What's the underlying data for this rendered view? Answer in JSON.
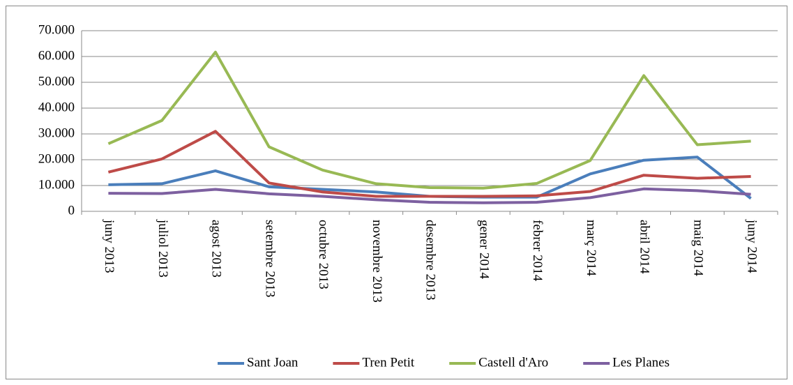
{
  "chart_data": {
    "type": "line",
    "categories": [
      "juny 2013",
      "juliol 2013",
      "agost 2013",
      "setembre 2013",
      "octubre 2013",
      "novembre 2013",
      "desembre 2013",
      "gener 2014",
      "febrer 2014",
      "març 2014",
      "abril 2014",
      "maig 2014",
      "juny 2014"
    ],
    "series": [
      {
        "name": "Sant Joan",
        "color": "#4a7ebb",
        "values": [
          10300,
          10700,
          15700,
          9500,
          8500,
          7500,
          5800,
          5500,
          5500,
          14500,
          19800,
          21000,
          5000
        ]
      },
      {
        "name": "Tren Petit",
        "color": "#be4b48",
        "values": [
          15200,
          20300,
          31000,
          11000,
          7500,
          5800,
          5800,
          5800,
          6000,
          7700,
          14000,
          12800,
          13500
        ]
      },
      {
        "name": "Castell d'Aro",
        "color": "#98b954",
        "values": [
          26200,
          35200,
          61700,
          25000,
          16000,
          10700,
          9200,
          9000,
          10800,
          19700,
          52600,
          25800,
          27200
        ]
      },
      {
        "name": "Les Planes",
        "color": "#7d60a0",
        "values": [
          7000,
          6900,
          8500,
          6800,
          5800,
          4500,
          3500,
          3300,
          3500,
          5300,
          8700,
          8000,
          6600
        ]
      }
    ],
    "ylim": [
      0,
      70000
    ],
    "yticks": [
      0,
      {
        "value": 10000,
        "label": "10.000"
      },
      {
        "value": 20000,
        "label": "20.000"
      },
      {
        "value": 30000,
        "label": "30.000"
      },
      {
        "value": 40000,
        "label": "40.000"
      },
      {
        "value": 50000,
        "label": "50.000"
      },
      {
        "value": 60000,
        "label": "60.000"
      },
      {
        "value": 70000,
        "label": "70.000"
      }
    ],
    "grid": true,
    "legend": "bottom"
  }
}
